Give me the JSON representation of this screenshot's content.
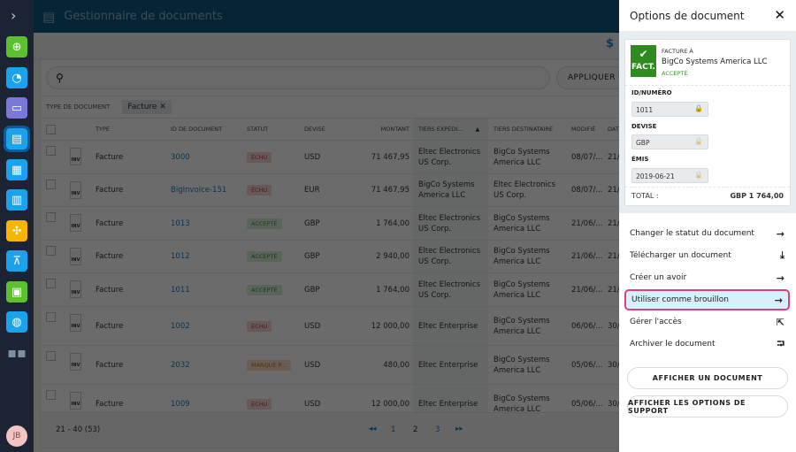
{
  "header": {
    "title": "Gestionnaire de documents"
  },
  "search": {
    "placeholder": "",
    "apply_label": "APPLIQUER UN"
  },
  "filter": {
    "label": "TYPE DE DOCUMENT",
    "chip": "Facture"
  },
  "columns": [
    "TYPE",
    "ID DE DOCUMENT",
    "STATUT",
    "DEVISE",
    "MONTANT",
    "TIERS EXPÉDI...",
    "TIERS DESTINATAIRE",
    "MODIFIÉ",
    "DAT"
  ],
  "rows": [
    {
      "type": "Facture",
      "id": "3000",
      "status": "ÉCHU",
      "cls": "b-echu",
      "currency": "USD",
      "amount": "71 467,95",
      "sender": "Eltec Electronics US Corp.",
      "receiver": "BigCo Systems America LLC",
      "modified": "08/07/...",
      "date": "21/"
    },
    {
      "type": "Facture",
      "id": "BigInvoice-151",
      "status": "ÉCHU",
      "cls": "b-echu",
      "currency": "EUR",
      "amount": "71 467,95",
      "sender": "BigCo Systems America LLC",
      "receiver": "Eltec Electronics US Corp.",
      "modified": "08/07/...",
      "date": "21/"
    },
    {
      "type": "Facture",
      "id": "1013",
      "status": "ACCEPTÉ",
      "cls": "b-acc",
      "currency": "GBP",
      "amount": "1 764,00",
      "sender": "Eltec Electronics US Corp.",
      "receiver": "BigCo Systems America LLC",
      "modified": "21/06/...",
      "date": "21/"
    },
    {
      "type": "Facture",
      "id": "1012",
      "status": "ACCEPTÉ",
      "cls": "b-acc",
      "currency": "GBP",
      "amount": "2 940,00",
      "sender": "Eltec Electronics US Corp.",
      "receiver": "BigCo Systems America LLC",
      "modified": "21/06/...",
      "date": "21/"
    },
    {
      "type": "Facture",
      "id": "1011",
      "status": "ACCEPTÉ",
      "cls": "b-acc",
      "currency": "GBP",
      "amount": "1 764,00",
      "sender": "Eltec Electronics US Corp.",
      "receiver": "BigCo Systems America LLC",
      "modified": "21/06/...",
      "date": "21/"
    },
    {
      "type": "Facture",
      "id": "1002",
      "status": "ÉCHU",
      "cls": "b-echu",
      "currency": "USD",
      "amount": "12 000,00",
      "sender": "Eltec Enterprise",
      "receiver": "BigCo Systems America LLC",
      "modified": "06/06/...",
      "date": "30/"
    },
    {
      "type": "Facture",
      "id": "2032",
      "status": "MARQUÉ P...",
      "cls": "b-mar",
      "currency": "USD",
      "amount": "480,00",
      "sender": "Eltec Enterprise",
      "receiver": "BigCo Systems America LLC",
      "modified": "05/06/...",
      "date": "30/"
    },
    {
      "type": "Facture",
      "id": "1009",
      "status": "ÉCHU",
      "cls": "b-echu",
      "currency": "USD",
      "amount": "12 000,00",
      "sender": "Eltec Enterprise",
      "receiver": "BigCo Systems America LLC",
      "modified": "05/06/...",
      "date": "30/"
    }
  ],
  "doc_icon_label": "INV",
  "footer": {
    "range": "21 - 40 (53)",
    "pages": [
      "1",
      "2",
      "3"
    ],
    "current": "2"
  },
  "user": {
    "initials": "JB"
  },
  "panel": {
    "title": "Options de document",
    "doc_badge": "FACT.",
    "doc_to_label": "FACTURE À",
    "doc_to": "BigCo Systems America LLC",
    "doc_status": "ACCEPTÉ",
    "fields": [
      {
        "label": "ID/NUMÉRO",
        "value": "1011"
      },
      {
        "label": "DEVISE",
        "value": "GBP"
      },
      {
        "label": "ÉMIS",
        "value": "2019-06-21"
      }
    ],
    "total_label": "TOTAL :",
    "total_value": "GBP 1 764,00",
    "actions": [
      {
        "label": "Changer le statut du document",
        "icon": "→"
      },
      {
        "label": "Télécharger un document",
        "icon": "⤓"
      },
      {
        "label": "Créer un avoir",
        "icon": "→"
      },
      {
        "label": "Utiliser comme brouillon",
        "icon": "→"
      },
      {
        "label": "Gérer l'accès",
        "icon": "⇱"
      },
      {
        "label": "Archiver le document",
        "icon": "⮒"
      }
    ],
    "buttons": [
      "AFFICHER UN DOCUMENT",
      "AFFICHER LES OPTIONS DE SUPPORT"
    ]
  }
}
